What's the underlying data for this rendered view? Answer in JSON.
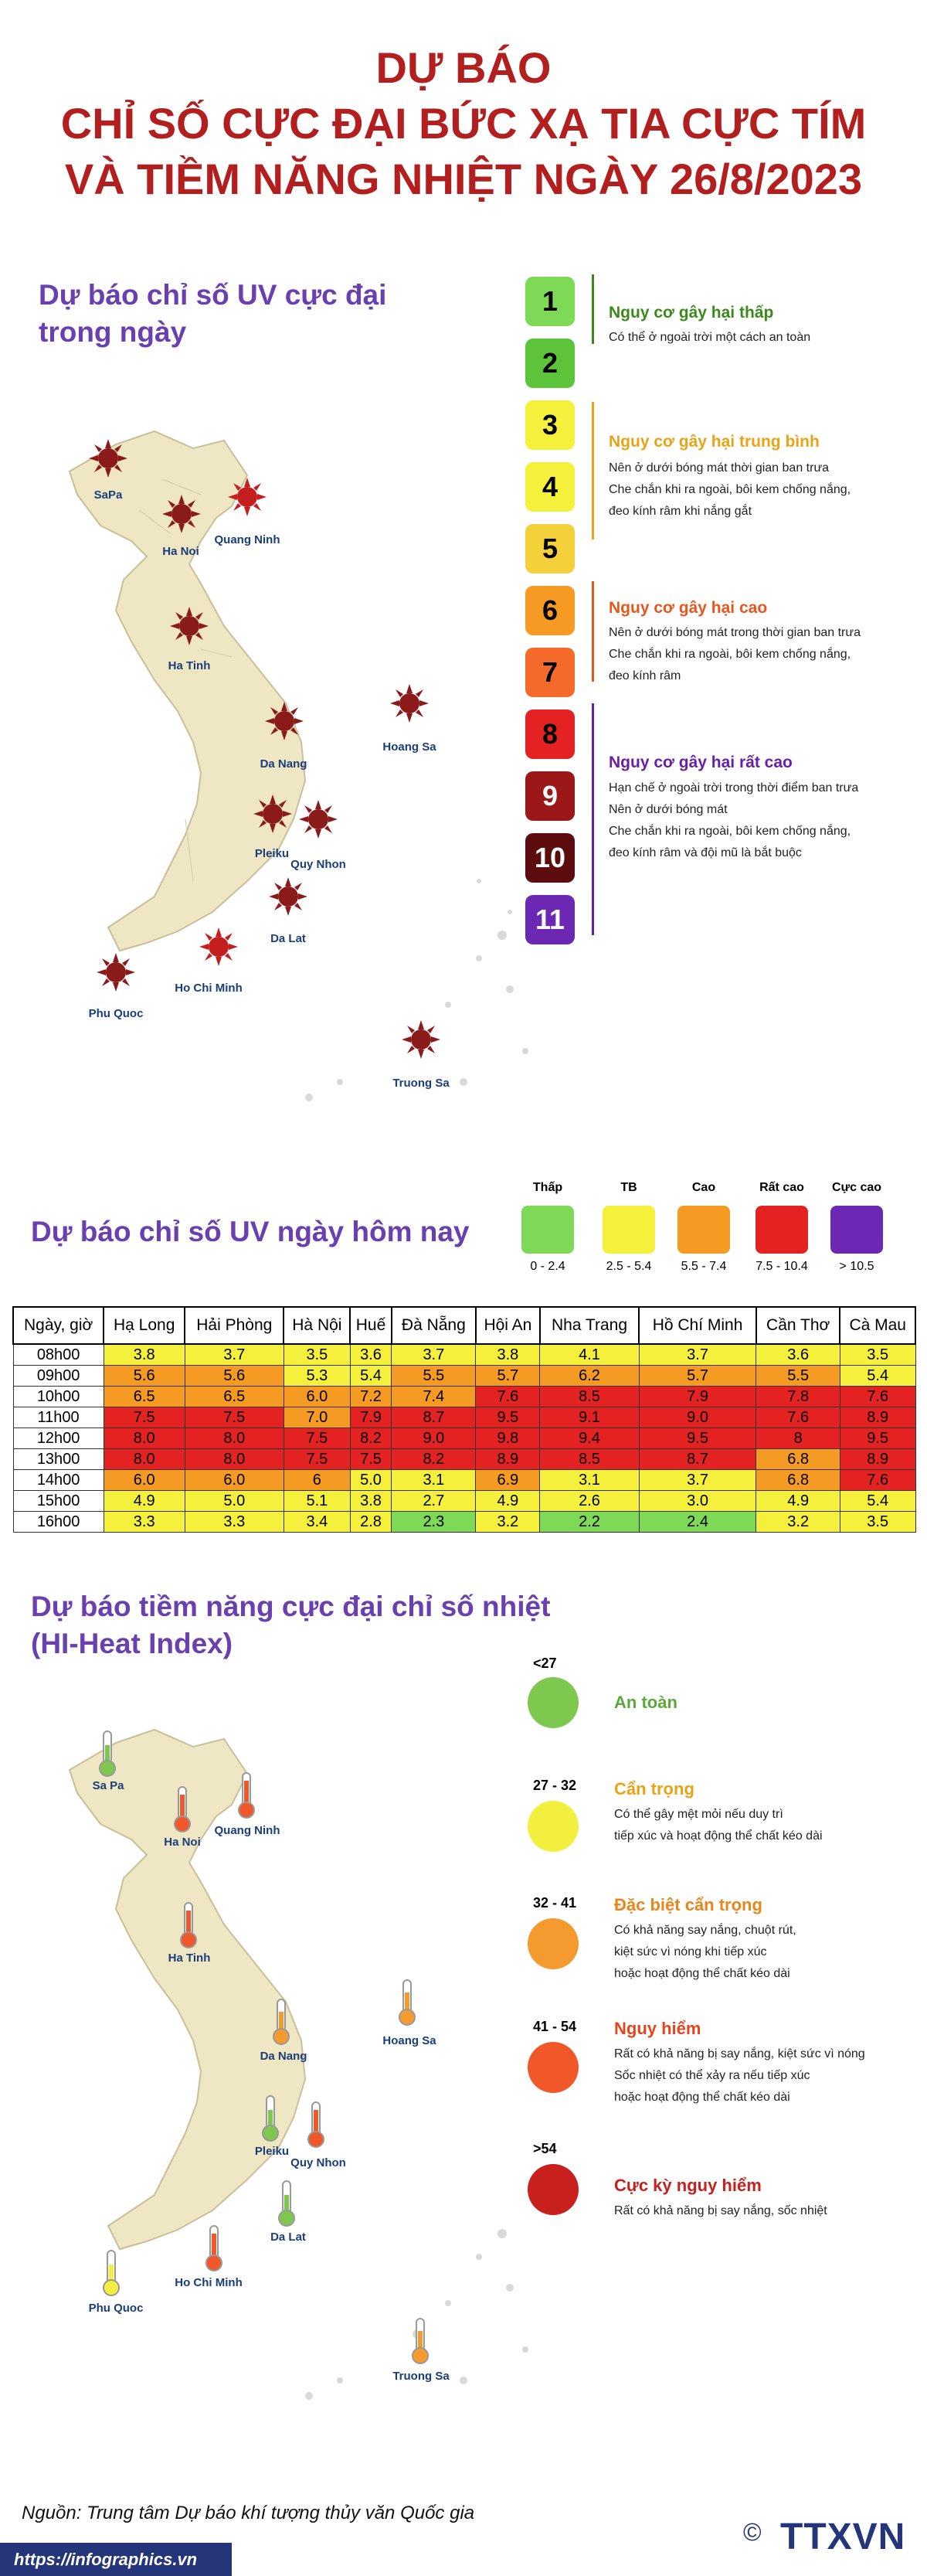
{
  "title": {
    "line1": "DỰ BÁO",
    "line2": "CHỈ SỐ CỰC ĐẠI BỨC XẠ TIA CỰC TÍM",
    "line3": "VÀ TIỀM NĂNG NHIỆT NGÀY 26/8/2023"
  },
  "uv_max": {
    "heading_l1": "Dự báo chỉ số UV cực đại",
    "heading_l2": "trong ngày",
    "cities": {
      "sapa": "SaPa",
      "hanoi": "Ha Noi",
      "quangninh": "Quang Ninh",
      "hatinh": "Ha Tinh",
      "danang": "Da Nang",
      "hoangsa": "Hoang Sa",
      "pleiku": "Pleiku",
      "quynhon": "Quy Nhon",
      "dalat": "Da Lat",
      "hcm": "Ho Chi Minh",
      "phuquoc": "Phu Quoc",
      "truongsa": "Truong Sa"
    },
    "scale": [
      {
        "v": "1",
        "color": "#7ed957"
      },
      {
        "v": "2",
        "color": "#5cc33a"
      },
      {
        "v": "3",
        "color": "#f4f03b"
      },
      {
        "v": "4",
        "color": "#f4f03b"
      },
      {
        "v": "5",
        "color": "#f4d03b"
      },
      {
        "v": "6",
        "color": "#f59a23"
      },
      {
        "v": "7",
        "color": "#f36a2a"
      },
      {
        "v": "8",
        "color": "#e52222"
      },
      {
        "v": "9",
        "color": "#9c1717"
      },
      {
        "v": "10",
        "color": "#5c0c0c"
      },
      {
        "v": "11",
        "color": "#6d28b3"
      }
    ],
    "risks": [
      {
        "title": "Nguy cơ gây hại thấp",
        "color": "#3c8a1c",
        "lines": [
          "Có thể ở ngoài trời một cách an toàn"
        ]
      },
      {
        "title": "Nguy cơ gây hại trung bình",
        "color": "#e8a317",
        "lines": [
          "Nên ở dưới bóng mát thời gian ban trưa",
          "Che chắn khi ra ngoài, bôi kem chống nắng,",
          "đeo kính râm khi nắng gắt"
        ]
      },
      {
        "title": "Nguy cơ gây hại cao",
        "color": "#e8561c",
        "lines": [
          "Nên ở dưới bóng mát trong thời gian ban trưa",
          "Che chắn khi ra ngoài, bôi kem chống nắng,",
          "đeo kính râm"
        ]
      },
      {
        "title": "Nguy cơ gây hại rất cao",
        "color": "#6a1fa8",
        "lines": [
          "Hạn chế ở ngoài trời trong thời điểm ban trưa",
          "Nên ở dưới bóng mát",
          "Che chắn khi ra ngoài, bôi kem chống nắng,",
          "đeo kính râm và đội mũ là bắt buộc"
        ]
      }
    ]
  },
  "uv_today": {
    "heading": "Dự báo chỉ số UV ngày hôm nay",
    "legend": [
      {
        "label": "Thấp",
        "range": "0 - 2.4",
        "color": "#7ed957"
      },
      {
        "label": "TB",
        "range": "2.5 - 5.4",
        "color": "#f4f03b"
      },
      {
        "label": "Cao",
        "range": "5.5 - 7.4",
        "color": "#f59a23"
      },
      {
        "label": "Rất cao",
        "range": "7.5 - 10.4",
        "color": "#e52222"
      },
      {
        "label": "Cực cao",
        "range": "> 10.5",
        "color": "#6d28b3"
      }
    ],
    "table": {
      "corner": "Ngày, giờ",
      "columns": [
        "Hạ Long",
        "Hải Phòng",
        "Hà Nội",
        "Huế",
        "Đà Nẵng",
        "Hội An",
        "Nha Trang",
        "Hồ Chí Minh",
        "Cần Thơ",
        "Cà Mau"
      ],
      "rows": [
        {
          "time": "08h00",
          "values": [
            "3.8",
            "3.7",
            "3.5",
            "3.6",
            "3.7",
            "3.8",
            "4.1",
            "3.7",
            "3.6",
            "3.5"
          ]
        },
        {
          "time": "09h00",
          "values": [
            "5.6",
            "5.6",
            "5.3",
            "5.4",
            "5.5",
            "5.7",
            "6.2",
            "5.7",
            "5.5",
            "5.4"
          ]
        },
        {
          "time": "10h00",
          "values": [
            "6.5",
            "6.5",
            "6.0",
            "7.2",
            "7.4",
            "7.6",
            "8.5",
            "7.9",
            "7.8",
            "7.6"
          ]
        },
        {
          "time": "11h00",
          "values": [
            "7.5",
            "7.5",
            "7.0",
            "7.9",
            "8.7",
            "9.5",
            "9.1",
            "9.0",
            "7.6",
            "8.9"
          ]
        },
        {
          "time": "12h00",
          "values": [
            "8.0",
            "8.0",
            "7.5",
            "8.2",
            "9.0",
            "9.8",
            "9.4",
            "9.5",
            "8",
            "9.5"
          ]
        },
        {
          "time": "13h00",
          "values": [
            "8.0",
            "8.0",
            "7.5",
            "7.5",
            "8.2",
            "8.9",
            "8.5",
            "8.7",
            "6.8",
            "8.9"
          ]
        },
        {
          "time": "14h00",
          "values": [
            "6.0",
            "6.0",
            "6",
            "5.0",
            "3.1",
            "6.9",
            "3.1",
            "3.7",
            "6.8",
            "7.6"
          ]
        },
        {
          "time": "15h00",
          "values": [
            "4.9",
            "5.0",
            "5.1",
            "3.8",
            "2.7",
            "4.9",
            "2.6",
            "3.0",
            "4.9",
            "5.4"
          ]
        },
        {
          "time": "16h00",
          "values": [
            "3.3",
            "3.3",
            "3.4",
            "2.8",
            "2.3",
            "3.2",
            "2.2",
            "2.4",
            "3.2",
            "3.5"
          ]
        }
      ]
    }
  },
  "heat_index": {
    "heading_l1": "Dự báo tiềm năng cực đại chỉ số nhiệt",
    "heading_l2": "(HI-Heat Index)",
    "cities": {
      "sapa": "Sa Pa",
      "hanoi": "Ha Noi",
      "quangninh": "Quang Ninh",
      "hatinh": "Ha Tinh",
      "danang": "Da Nang",
      "hoangsa": "Hoang Sa",
      "pleiku": "Pleiku",
      "quynhon": "Quy Nhon",
      "dalat": "Da Lat",
      "hcm": "Ho Chi Minh",
      "phuquoc": "Phu Quoc",
      "truongsa": "Truong Sa"
    },
    "levels": [
      {
        "range": "<27",
        "title": "An toàn",
        "color": "#7ec850",
        "title_color": "#5aa83a",
        "lines": []
      },
      {
        "range": "27 - 32",
        "title": "Cẩn trọng",
        "color": "#f2ef3e",
        "title_color": "#e8a317",
        "lines": [
          "Có thể gây mệt mỏi nếu duy trì",
          "tiếp xúc và hoạt động thể chất kéo dài"
        ]
      },
      {
        "range": "32 - 41",
        "title": "Đặc biệt cẩn trọng",
        "color": "#f59a2e",
        "title_color": "#e8861c",
        "lines": [
          "Có khả năng say nắng, chuột rút,",
          "kiệt sức vì nóng khi tiếp xúc",
          "hoặc hoạt động thể chất kéo dài"
        ]
      },
      {
        "range": "41 - 54",
        "title": "Nguy hiểm",
        "color": "#f0582a",
        "title_color": "#e5451c",
        "lines": [
          "Rất có khả năng bị say nắng, kiệt sức vì nóng",
          "Sốc nhiệt có thể xảy ra nếu tiếp xúc",
          "hoặc hoạt động thể chất kéo dài"
        ]
      },
      {
        "range": ">54",
        "title": "Cực kỳ nguy hiểm",
        "color": "#c8201c",
        "title_color": "#c8201c",
        "lines": [
          "Rất có khả năng bị say nắng, sốc nhiệt"
        ]
      }
    ]
  },
  "footer": {
    "source": "Nguồn: Trung tâm Dự báo khí tượng thủy văn Quốc gia",
    "url": "https://infographics.vn",
    "logo": "TTXVN",
    "copyright": "©"
  }
}
